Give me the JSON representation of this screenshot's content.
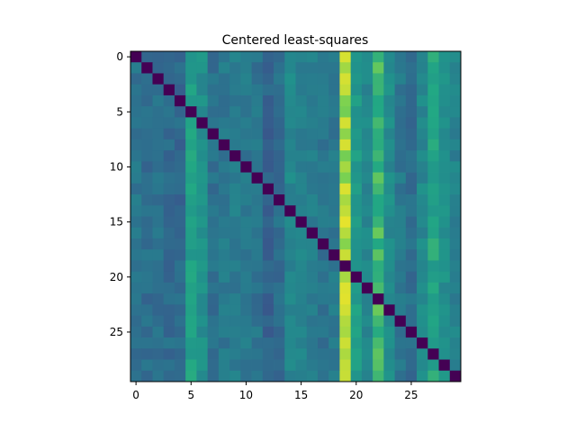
{
  "chart_data": {
    "type": "heatmap",
    "title": "Centered least-squares",
    "xlabel": "",
    "ylabel": "",
    "colormap": "viridis",
    "value_range": [
      0,
      1
    ],
    "grid": false,
    "legend": "none",
    "n_rows": 30,
    "n_cols": 30,
    "x_ticks": [
      0,
      5,
      10,
      15,
      20,
      25
    ],
    "y_ticks": [
      0,
      5,
      10,
      15,
      20,
      25
    ],
    "column_levels": [
      0.48,
      0.45,
      0.46,
      0.44,
      0.43,
      0.7,
      0.62,
      0.46,
      0.5,
      0.52,
      0.5,
      0.48,
      0.4,
      0.45,
      0.58,
      0.55,
      0.52,
      0.48,
      0.5,
      0.92,
      0.68,
      0.58,
      0.8,
      0.6,
      0.5,
      0.45,
      0.58,
      0.72,
      0.62,
      0.55
    ],
    "diagonal_value": 0.0
  }
}
